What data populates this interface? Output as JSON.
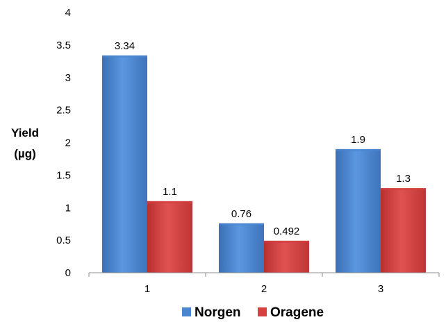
{
  "chart_data": {
    "type": "bar",
    "title": "",
    "xlabel": "",
    "ylabel": "Yield (µg)",
    "ylabel_lines": [
      "Yield",
      "(µg)"
    ],
    "categories": [
      "1",
      "2",
      "3"
    ],
    "series": [
      {
        "name": "Norgen",
        "values": [
          3.34,
          0.76,
          1.9
        ],
        "labels": [
          "3.34",
          "0.76",
          "1.9"
        ],
        "color": "#4a86d0"
      },
      {
        "name": "Oragene",
        "values": [
          1.1,
          0.492,
          1.3
        ],
        "labels": [
          "1.1",
          "0.492",
          "1.3"
        ],
        "color": "#d6403f"
      }
    ],
    "ylim": [
      0,
      4
    ],
    "yticks": [
      "0",
      "0.5",
      "1",
      "1.5",
      "2",
      "2.5",
      "3",
      "3.5",
      "4"
    ],
    "grid": false,
    "legend_position": "bottom",
    "data_labels": true
  }
}
